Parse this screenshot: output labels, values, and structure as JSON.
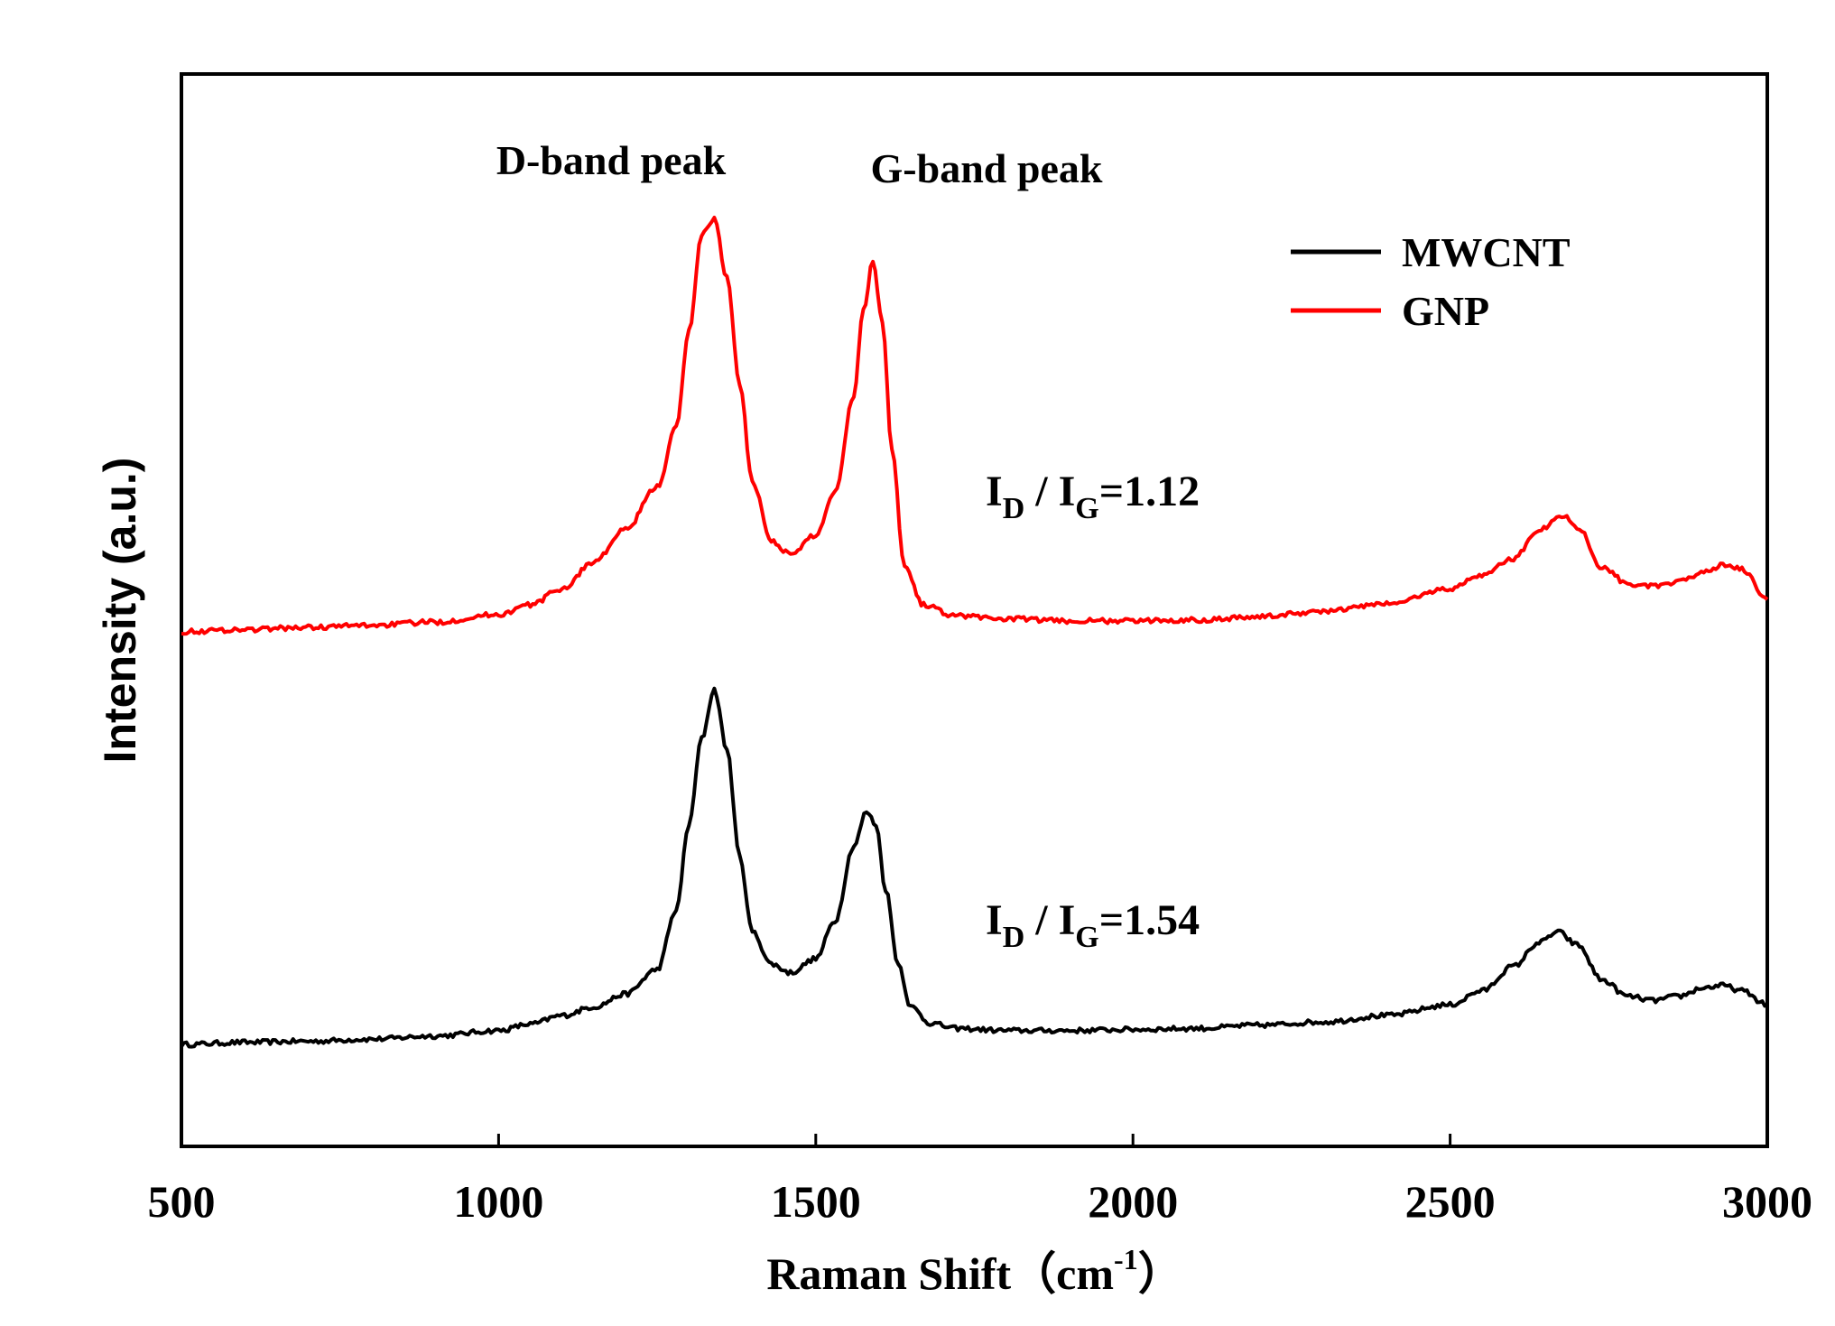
{
  "chart_data": {
    "type": "line",
    "title": "",
    "xlabel": "Raman Shift（cm",
    "xlabel_superscript": "-1",
    "xlabel_close": "）",
    "ylabel": "Intensity (a.u.)",
    "xlim": [
      500,
      3000
    ],
    "ylim": [
      0,
      100
    ],
    "grid": false,
    "x_ticks": [
      500,
      1000,
      1500,
      2000,
      2500,
      3000
    ],
    "x_tick_labels": [
      "500",
      "1000",
      "1500",
      "2000",
      "2500",
      "3000"
    ],
    "legend_position": "top-right",
    "legend": [
      "MWCNT",
      "GNP"
    ],
    "annotations": {
      "d_band": "D-band peak",
      "g_band": "G-band peak",
      "gnp_ratio": {
        "I1": "I",
        "sub1": "D",
        "sep": " / ",
        "I2": "I",
        "sub2": "G",
        "value": "=1.12"
      },
      "mwcnt_ratio": {
        "I1": "I",
        "sub1": "D",
        "sep": " / ",
        "I2": "I",
        "sub2": "G",
        "value": "=1.54"
      }
    },
    "series": [
      {
        "name": "MWCNT",
        "color": "#000000",
        "x": [
          500,
          600,
          700,
          800,
          900,
          1000,
          1050,
          1100,
          1150,
          1200,
          1250,
          1280,
          1300,
          1320,
          1340,
          1360,
          1380,
          1400,
          1430,
          1460,
          1500,
          1530,
          1560,
          1580,
          1595,
          1610,
          1630,
          1650,
          1680,
          1720,
          1800,
          1900,
          2000,
          2100,
          2200,
          2300,
          2400,
          2500,
          2550,
          2600,
          2640,
          2670,
          2700,
          2740,
          2780,
          2820,
          2860,
          2900,
          2930,
          2960,
          3000
        ],
        "y": [
          9.5,
          9.7,
          9.8,
          10.0,
          10.3,
          10.8,
          11.4,
          12.2,
          13.0,
          14.2,
          16.5,
          22.0,
          30.0,
          38.0,
          42.6,
          37.0,
          27.0,
          20.0,
          17.0,
          16.2,
          17.5,
          21.0,
          28.0,
          31.2,
          30.0,
          24.0,
          17.0,
          13.0,
          11.5,
          11.0,
          10.8,
          10.8,
          10.9,
          11.0,
          11.3,
          11.6,
          12.2,
          13.2,
          14.5,
          16.8,
          19.0,
          20.0,
          18.8,
          15.5,
          14.0,
          13.6,
          14.0,
          14.8,
          15.0,
          14.5,
          13.2
        ]
      },
      {
        "name": "GNP",
        "color": "#ff0000",
        "x": [
          500,
          600,
          700,
          800,
          900,
          1000,
          1050,
          1100,
          1150,
          1200,
          1250,
          1280,
          1300,
          1320,
          1340,
          1360,
          1380,
          1400,
          1430,
          1460,
          1500,
          1530,
          1560,
          1575,
          1590,
          1605,
          1620,
          1640,
          1670,
          1720,
          1800,
          1900,
          2000,
          2100,
          2200,
          2300,
          2400,
          2500,
          2550,
          2600,
          2640,
          2680,
          2700,
          2740,
          2780,
          2820,
          2860,
          2900,
          2930,
          2960,
          3000
        ],
        "y": [
          48.0,
          48.2,
          48.4,
          48.6,
          48.9,
          49.6,
          50.5,
          52.0,
          54.5,
          57.5,
          61.5,
          67.0,
          76.0,
          85.0,
          86.5,
          81.0,
          71.0,
          62.0,
          56.5,
          55.2,
          57.0,
          61.0,
          70.0,
          78.0,
          82.5,
          77.0,
          65.0,
          54.0,
          50.5,
          49.5,
          49.2,
          49.0,
          49.0,
          49.1,
          49.4,
          49.9,
          50.6,
          52.0,
          53.3,
          54.8,
          57.5,
          58.8,
          57.8,
          54.0,
          52.5,
          52.2,
          52.6,
          53.6,
          54.2,
          53.8,
          51.0
        ]
      }
    ]
  }
}
